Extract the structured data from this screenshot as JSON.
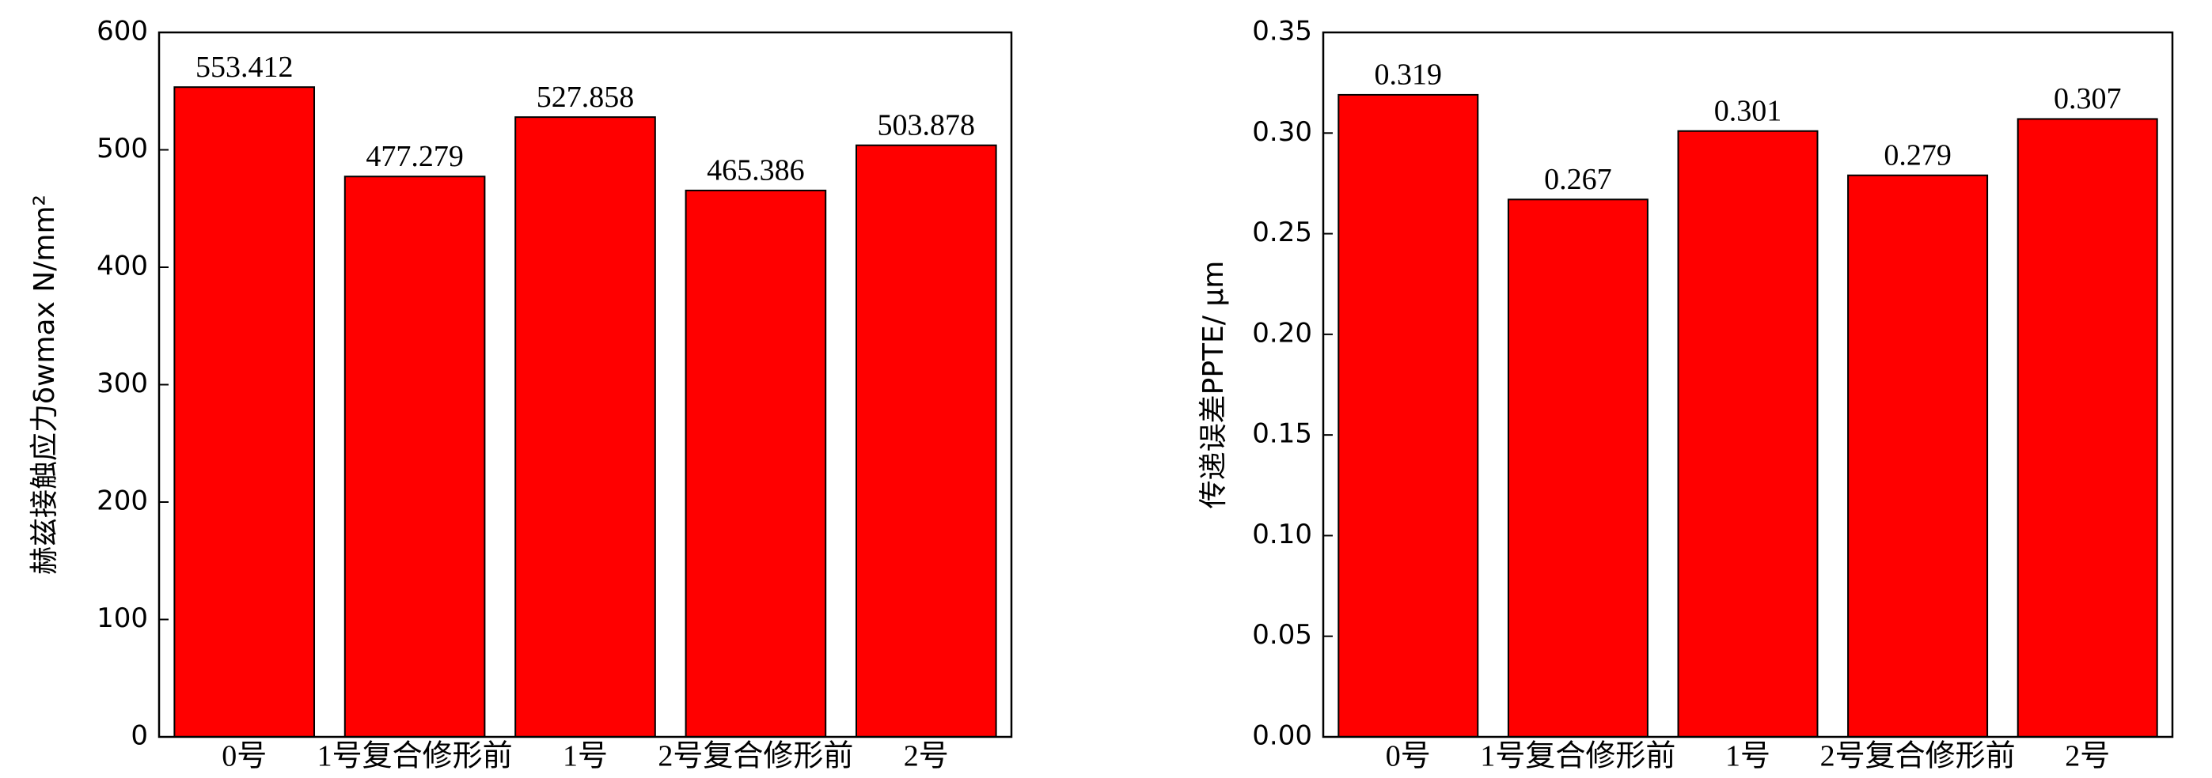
{
  "chart_data": [
    {
      "type": "bar",
      "y_label": "赫兹接触应力δwmax N/mm²",
      "categories": [
        "0号",
        "1号复合修形前",
        "1号",
        "2号复合修形前",
        "2号"
      ],
      "values": [
        553.412,
        477.279,
        527.858,
        465.386,
        503.878
      ],
      "color": "#ff0000",
      "ylim": [
        0,
        600
      ],
      "yticks": [
        0,
        100,
        200,
        300,
        400,
        500,
        600
      ]
    },
    {
      "type": "bar",
      "y_label": "传递误差PPTE/ μm",
      "categories": [
        "0号",
        "1号复合修形前",
        "1号",
        "2号复合修形前",
        "2号"
      ],
      "values": [
        0.319,
        0.267,
        0.301,
        0.279,
        0.307
      ],
      "color": "#ff0000",
      "ylim": [
        0,
        0.35
      ],
      "yticks": [
        {
          "value": 0,
          "label": "0.00"
        },
        0.05,
        {
          "value": 0.1,
          "label": "0.10"
        },
        0.15,
        {
          "value": 0.2,
          "label": "0.20"
        },
        0.25,
        {
          "value": 0.3,
          "label": "0.30"
        },
        0.35
      ]
    }
  ]
}
